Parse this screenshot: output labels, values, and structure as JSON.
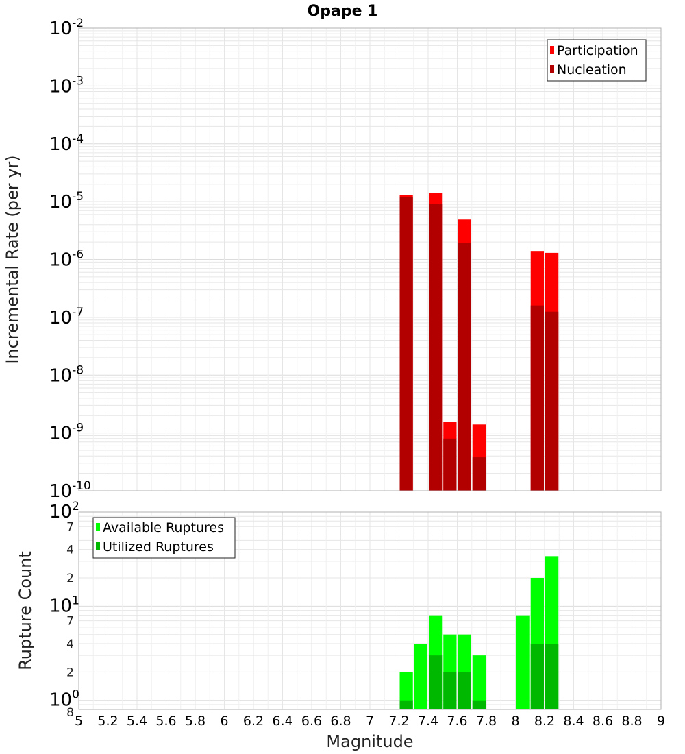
{
  "title": "Opape 1",
  "chart_data": [
    {
      "type": "bar",
      "ylabel": "Incremental Rate (per yr)",
      "yscale": "log",
      "ylim": [
        1e-10,
        0.01
      ],
      "xlim": [
        5,
        9
      ],
      "bar_width": 0.1,
      "grid": true,
      "legend_position": "top-right",
      "y_tick_exponents": [
        -10,
        -9,
        -8,
        -7,
        -6,
        -5,
        -4,
        -3,
        -2
      ],
      "series": [
        {
          "name": "Participation",
          "color": "#ff0000",
          "x": [
            7.25,
            7.45,
            7.55,
            7.65,
            7.75,
            8.15,
            8.25
          ],
          "values": [
            1.3e-05,
            1.4e-05,
            1.55e-09,
            4.9e-06,
            1.4e-09,
            1.4e-06,
            1.3e-06
          ]
        },
        {
          "name": "Nucleation",
          "color": "#b20000",
          "x": [
            7.25,
            7.45,
            7.55,
            7.65,
            7.75,
            8.15,
            8.25
          ],
          "values": [
            1.2e-05,
            9e-06,
            8e-10,
            1.9e-06,
            3.8e-10,
            1.6e-07,
            1.25e-07
          ]
        }
      ]
    },
    {
      "type": "bar",
      "xlabel": "Magnitude",
      "ylabel": "Rupture Count",
      "yscale": "log",
      "ylim": [
        0.8,
        100
      ],
      "xlim": [
        5,
        9
      ],
      "bar_width": 0.1,
      "grid": true,
      "legend_position": "top-left",
      "x_ticks": [
        "5",
        "5.2",
        "5.4",
        "5.6",
        "5.8",
        "6",
        "6.2",
        "6.4",
        "6.6",
        "6.8",
        "7",
        "7.2",
        "7.4",
        "7.6",
        "7.8",
        "8",
        "8.2",
        "8.4",
        "8.6",
        "8.8",
        "9"
      ],
      "y_major_ticks": [
        {
          "base": "10",
          "exp": "0",
          "value": 1
        },
        {
          "base": "10",
          "exp": "1",
          "value": 10
        },
        {
          "base": "10",
          "exp": "2",
          "value": 100
        }
      ],
      "y_minor_ticks": [
        {
          "label": "8",
          "value": 0.8
        },
        {
          "label": "2",
          "value": 2
        },
        {
          "label": "4",
          "value": 4
        },
        {
          "label": "7",
          "value": 7
        },
        {
          "label": "2",
          "value": 20
        },
        {
          "label": "4",
          "value": 40
        },
        {
          "label": "7",
          "value": 70
        }
      ],
      "series": [
        {
          "name": "Available Ruptures",
          "color": "#00ff00",
          "x": [
            7.25,
            7.35,
            7.45,
            7.55,
            7.65,
            7.75,
            8.05,
            8.15,
            8.25
          ],
          "values": [
            2,
            4,
            8,
            5,
            5,
            3,
            8,
            20,
            34
          ]
        },
        {
          "name": "Utilized Ruptures",
          "color": "#00b800",
          "x": [
            7.25,
            7.45,
            7.55,
            7.65,
            7.75,
            8.15,
            8.25
          ],
          "values": [
            1,
            3,
            2,
            2,
            1,
            4,
            4
          ]
        }
      ]
    }
  ]
}
